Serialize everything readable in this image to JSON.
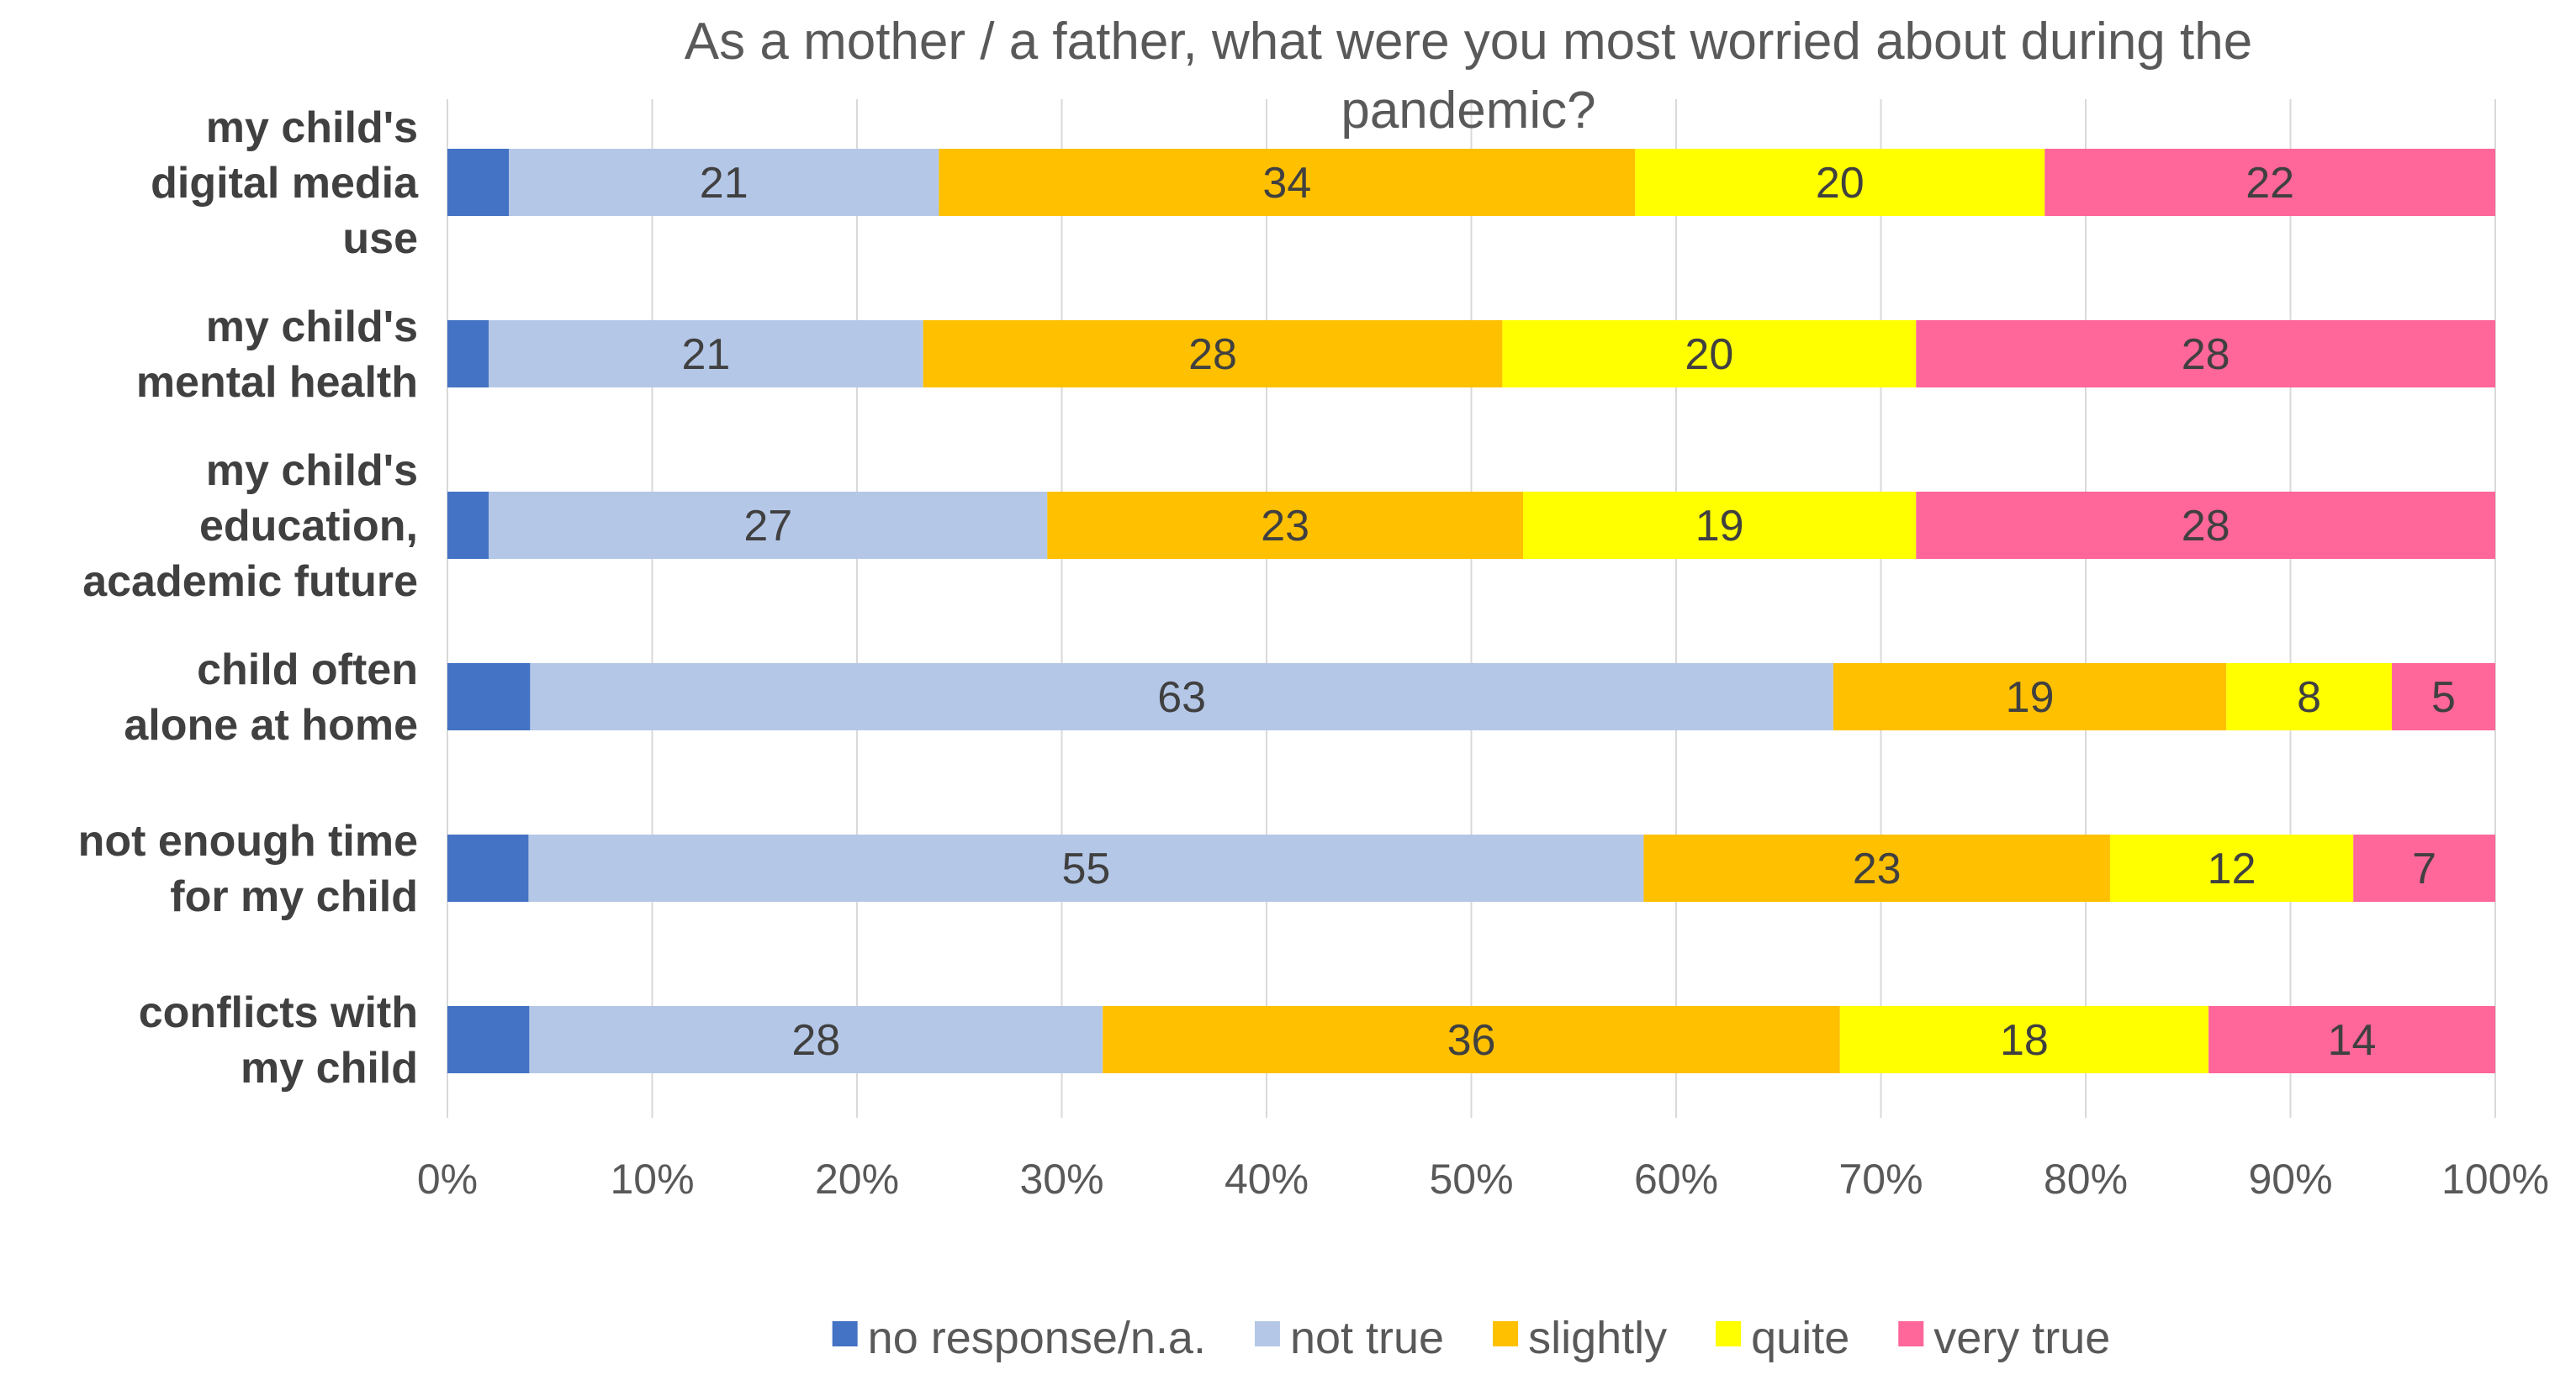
{
  "chart_data": {
    "type": "bar",
    "orientation": "horizontal",
    "stacked": "percent",
    "title": "As a mother / a father, what were you most worried about during the pandemic?",
    "title_lines": [
      "As a mother / a father, what were you most worried about during the",
      "pandemic?"
    ],
    "categories": [
      "my child's digital media use",
      "my child's mental health",
      "my child's education, academic future",
      "child often alone at home",
      "not enough time for my child",
      "conflicts with my child"
    ],
    "category_lines": [
      [
        "my child's",
        "digital media",
        "use"
      ],
      [
        "my child's",
        "mental health"
      ],
      [
        "my child's",
        "education,",
        "academic future"
      ],
      [
        "child often",
        "alone at home"
      ],
      [
        "not enough time",
        "for my child"
      ],
      [
        "conflicts with",
        "my child"
      ]
    ],
    "series": [
      {
        "name": "no response/n.a.",
        "color": "#4472c4",
        "values": [
          3,
          2,
          2,
          4,
          4,
          4
        ],
        "labeled": false
      },
      {
        "name": "not true",
        "color": "#b4c7e7",
        "values": [
          21,
          21,
          27,
          63,
          55,
          28
        ],
        "labeled": true
      },
      {
        "name": "slightly",
        "color": "#ffc000",
        "values": [
          34,
          28,
          23,
          19,
          23,
          36
        ],
        "labeled": true
      },
      {
        "name": "quite",
        "color": "#ffff00",
        "values": [
          20,
          20,
          19,
          8,
          12,
          18
        ],
        "labeled": true
      },
      {
        "name": "very true",
        "color": "#ff6699",
        "values": [
          22,
          28,
          28,
          5,
          7,
          14
        ],
        "labeled": true
      }
    ],
    "xlim": [
      0,
      100
    ],
    "xticks": [
      "0%",
      "10%",
      "20%",
      "30%",
      "40%",
      "50%",
      "60%",
      "70%",
      "80%",
      "90%",
      "100%"
    ],
    "xlabel": "",
    "ylabel": "",
    "grid": true,
    "legend": "bottom"
  }
}
